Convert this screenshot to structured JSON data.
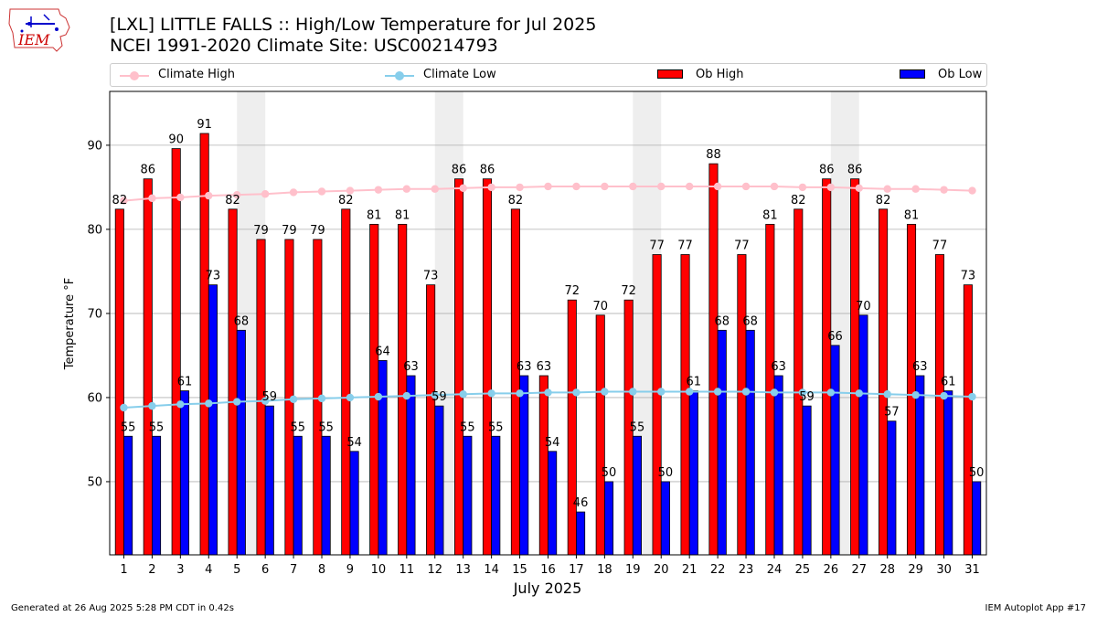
{
  "header": {
    "logo_text": "IEM",
    "title_line1": "[LXL] LITTLE FALLS :: High/Low Temperature for Jul 2025",
    "title_line2": "NCEI 1991-2020 Climate Site: USC00214793"
  },
  "footer": {
    "generated": "Generated at 26 Aug 2025 5:28 PM CDT in 0.42s",
    "app": "IEM Autoplot App #17"
  },
  "colors": {
    "ob_high": "#ff0000",
    "ob_low": "#0000ff",
    "climate_high": "#ffc0cb",
    "climate_low": "#87ceeb",
    "weekend_shade": "#eeeeee",
    "grid": "#b0b0b0"
  },
  "chart_data": {
    "type": "bar",
    "xlabel": "July 2025",
    "ylabel": "Temperature °F",
    "ylim": [
      41.3,
      96.4
    ],
    "yticks": [
      50,
      60,
      70,
      80,
      90
    ],
    "grid": "horizontal",
    "legend_position": "top",
    "categories": [
      "1",
      "2",
      "3",
      "4",
      "5",
      "6",
      "7",
      "8",
      "9",
      "10",
      "11",
      "12",
      "13",
      "14",
      "15",
      "16",
      "17",
      "18",
      "19",
      "20",
      "21",
      "22",
      "23",
      "24",
      "25",
      "26",
      "27",
      "28",
      "29",
      "30",
      "31"
    ],
    "shaded_day_pairs": [
      [
        5,
        6
      ],
      [
        12,
        13
      ],
      [
        19,
        20
      ],
      [
        26,
        27
      ]
    ],
    "series": [
      {
        "name": "Ob High",
        "kind": "bar",
        "values": [
          82.4,
          86.0,
          89.6,
          91.4,
          82.4,
          78.8,
          78.8,
          78.8,
          82.4,
          80.6,
          80.6,
          73.4,
          86.0,
          86.0,
          82.4,
          62.6,
          71.6,
          69.8,
          71.6,
          77.0,
          77.0,
          87.8,
          77.0,
          80.6,
          82.4,
          86.0,
          86.0,
          82.4,
          80.6,
          77.0,
          73.4
        ],
        "labels": [
          "82",
          "86",
          "90",
          "91",
          "82",
          "79",
          "79",
          "79",
          "82",
          "81",
          "81",
          "73",
          "86",
          "86",
          "82",
          "63",
          "72",
          "70",
          "72",
          "77",
          "77",
          "88",
          "77",
          "81",
          "82",
          "86",
          "86",
          "82",
          "81",
          "77",
          "73"
        ]
      },
      {
        "name": "Ob Low",
        "kind": "bar",
        "values": [
          55.4,
          55.4,
          60.8,
          73.4,
          68.0,
          59.0,
          55.4,
          55.4,
          53.6,
          64.4,
          62.6,
          59.0,
          55.4,
          55.4,
          62.6,
          53.6,
          46.4,
          50.0,
          55.4,
          50.0,
          60.8,
          68.0,
          68.0,
          62.6,
          59.0,
          66.2,
          69.8,
          57.2,
          62.6,
          60.8,
          50.0
        ],
        "labels": [
          "55",
          "55",
          "61",
          "73",
          "68",
          "59",
          "55",
          "55",
          "54",
          "64",
          "63",
          "59",
          "55",
          "55",
          "63",
          "54",
          "46",
          "50",
          "55",
          "50",
          "61",
          "68",
          "68",
          "63",
          "59",
          "66",
          "70",
          "57",
          "63",
          "61",
          "50"
        ]
      },
      {
        "name": "Climate High",
        "kind": "line",
        "values": [
          83.4,
          83.7,
          83.8,
          84.0,
          84.1,
          84.2,
          84.4,
          84.5,
          84.6,
          84.7,
          84.8,
          84.8,
          84.9,
          85.0,
          85.0,
          85.1,
          85.1,
          85.1,
          85.1,
          85.1,
          85.1,
          85.1,
          85.1,
          85.1,
          85.0,
          85.0,
          84.9,
          84.8,
          84.8,
          84.7,
          84.6
        ]
      },
      {
        "name": "Climate Low",
        "kind": "line",
        "values": [
          58.8,
          59.0,
          59.2,
          59.3,
          59.5,
          59.6,
          59.8,
          59.9,
          60.0,
          60.1,
          60.2,
          60.3,
          60.4,
          60.5,
          60.5,
          60.6,
          60.6,
          60.7,
          60.7,
          60.7,
          60.7,
          60.7,
          60.7,
          60.6,
          60.6,
          60.6,
          60.5,
          60.4,
          60.3,
          60.2,
          60.1
        ]
      }
    ]
  }
}
